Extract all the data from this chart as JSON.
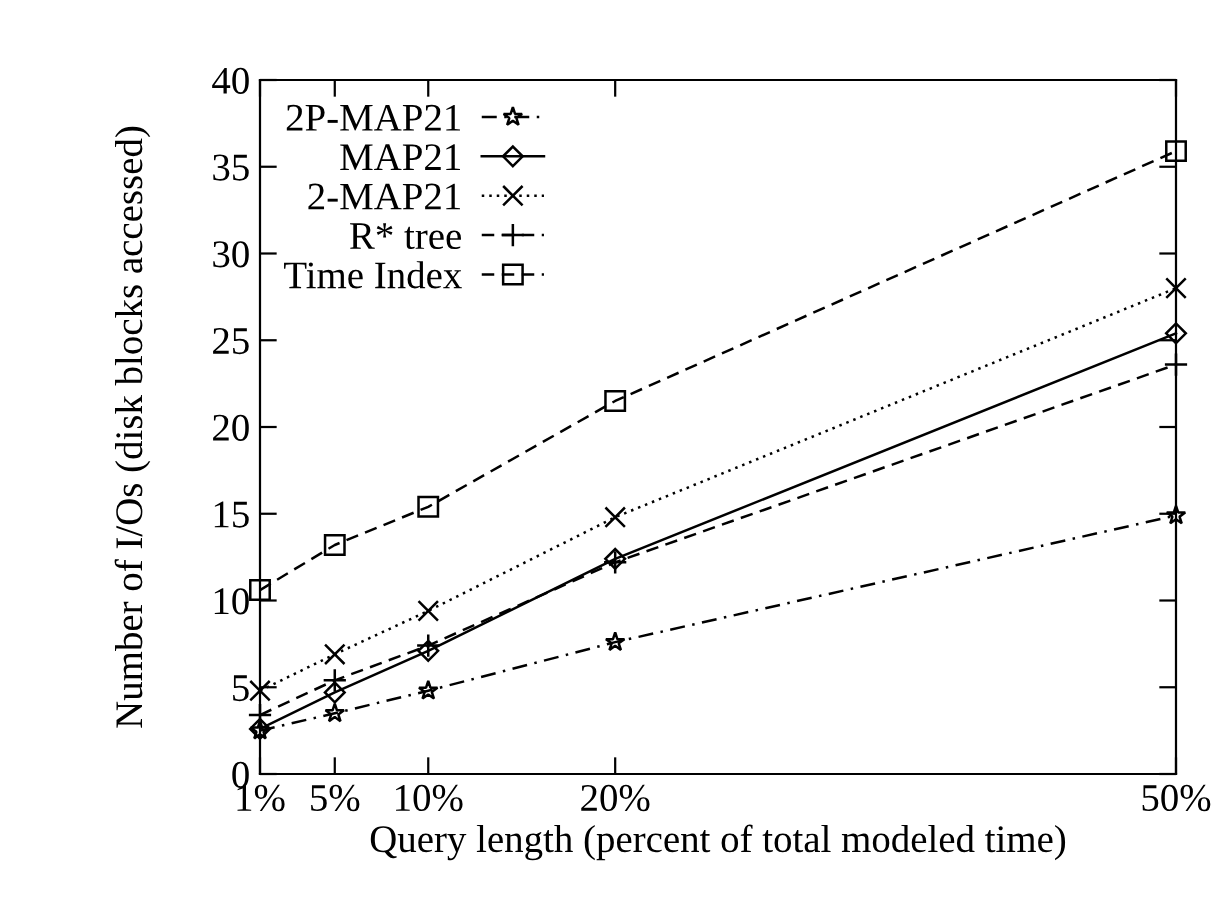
{
  "chart_data": {
    "type": "line",
    "xlabel": "Query length (percent of total modeled time)",
    "ylabel": "Number of I/Os (disk blocks accessed)",
    "x": [
      1,
      5,
      10,
      20,
      50
    ],
    "series": [
      {
        "name": "2P-MAP21",
        "color": "#000000",
        "marker": "star",
        "line_style": "dashdot",
        "values": [
          2.5,
          3.5,
          4.8,
          7.6,
          14.9
        ]
      },
      {
        "name": "MAP21",
        "color": "#000000",
        "marker": "diamond",
        "line_style": "solid",
        "values": [
          2.6,
          4.7,
          7.1,
          12.4,
          25.4
        ]
      },
      {
        "name": "2-MAP21",
        "color": "#000000",
        "marker": "cross",
        "line_style": "dotted",
        "values": [
          4.8,
          6.9,
          9.4,
          14.8,
          28.0
        ]
      },
      {
        "name": "R* tree",
        "color": "#000000",
        "marker": "plus",
        "line_style": "dashed",
        "values": [
          3.4,
          5.4,
          7.4,
          12.2,
          23.6
        ]
      },
      {
        "name": "Time Index",
        "color": "#000000",
        "marker": "square",
        "line_style": "dashed",
        "values": [
          10.6,
          13.2,
          15.4,
          21.5,
          35.9
        ]
      }
    ],
    "xlim": [
      1,
      50
    ],
    "ylim": [
      0,
      40
    ],
    "xticks": [
      {
        "value": 1,
        "label": "1%"
      },
      {
        "value": 5,
        "label": "5%"
      },
      {
        "value": 10,
        "label": "10%"
      },
      {
        "value": 20,
        "label": "20%"
      },
      {
        "value": 50,
        "label": "50%"
      }
    ],
    "yticks": [
      0,
      5,
      10,
      15,
      20,
      25,
      30,
      35,
      40
    ],
    "grid": false,
    "legend": "top left"
  }
}
